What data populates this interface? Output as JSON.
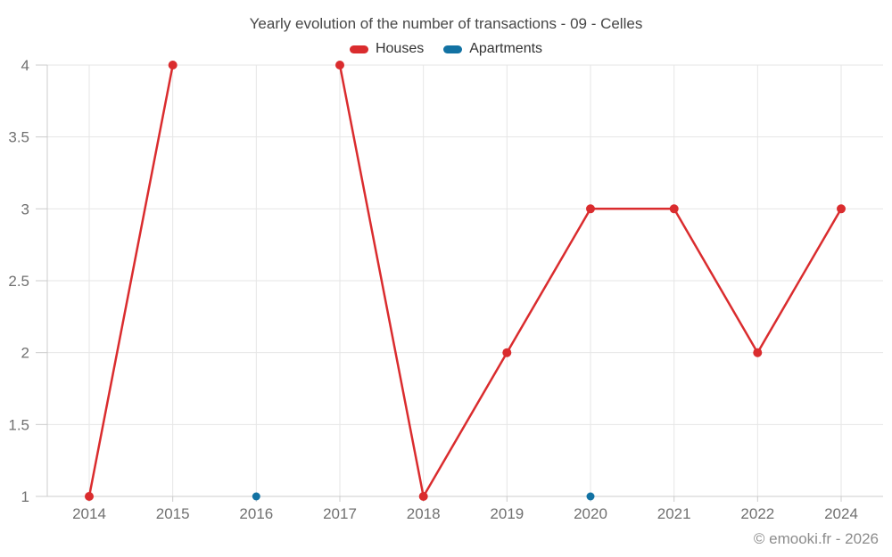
{
  "footer": "© emooki.fr - 2026",
  "chart_data": {
    "type": "line",
    "title": "Yearly evolution of the number of transactions - 09 - Celles",
    "categories": [
      "2014",
      "2015",
      "2016",
      "2017",
      "2018",
      "2019",
      "2020",
      "2021",
      "2022",
      "2024"
    ],
    "series": [
      {
        "name": "Houses",
        "key": "houses",
        "color": "#da2c2e",
        "values": [
          1,
          4,
          null,
          4,
          1,
          2,
          3,
          3,
          2,
          3
        ]
      },
      {
        "name": "Apartments",
        "key": "apartments",
        "color": "#1272a3",
        "values": [
          null,
          null,
          1,
          null,
          null,
          null,
          1,
          null,
          null,
          null
        ]
      }
    ],
    "xlabel": "",
    "ylabel": "",
    "ylim": [
      1,
      4
    ],
    "yticks": [
      "1",
      "1.5",
      "2",
      "2.5",
      "3",
      "3.5",
      "4"
    ],
    "grid": "on",
    "legend_position": "top-center",
    "colors": {
      "grid": "#e6e6e6",
      "axis": "#cccccc",
      "tick_label": "#707070"
    }
  }
}
